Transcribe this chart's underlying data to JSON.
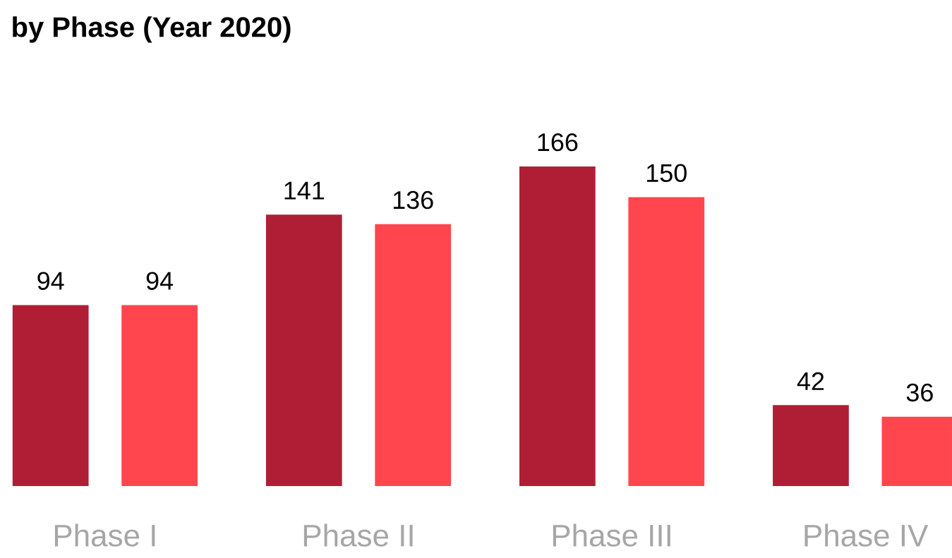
{
  "chart_data": {
    "type": "bar",
    "title": "by Phase (Year 2020)",
    "categories": [
      "Phase I",
      "Phase II",
      "Phase III",
      "Phase IV"
    ],
    "series": [
      {
        "color": "#b01e35",
        "values": [
          94,
          141,
          166,
          42
        ]
      },
      {
        "color": "#ff464f",
        "values": [
          94,
          136,
          150,
          36
        ]
      }
    ],
    "data_labels": true
  }
}
